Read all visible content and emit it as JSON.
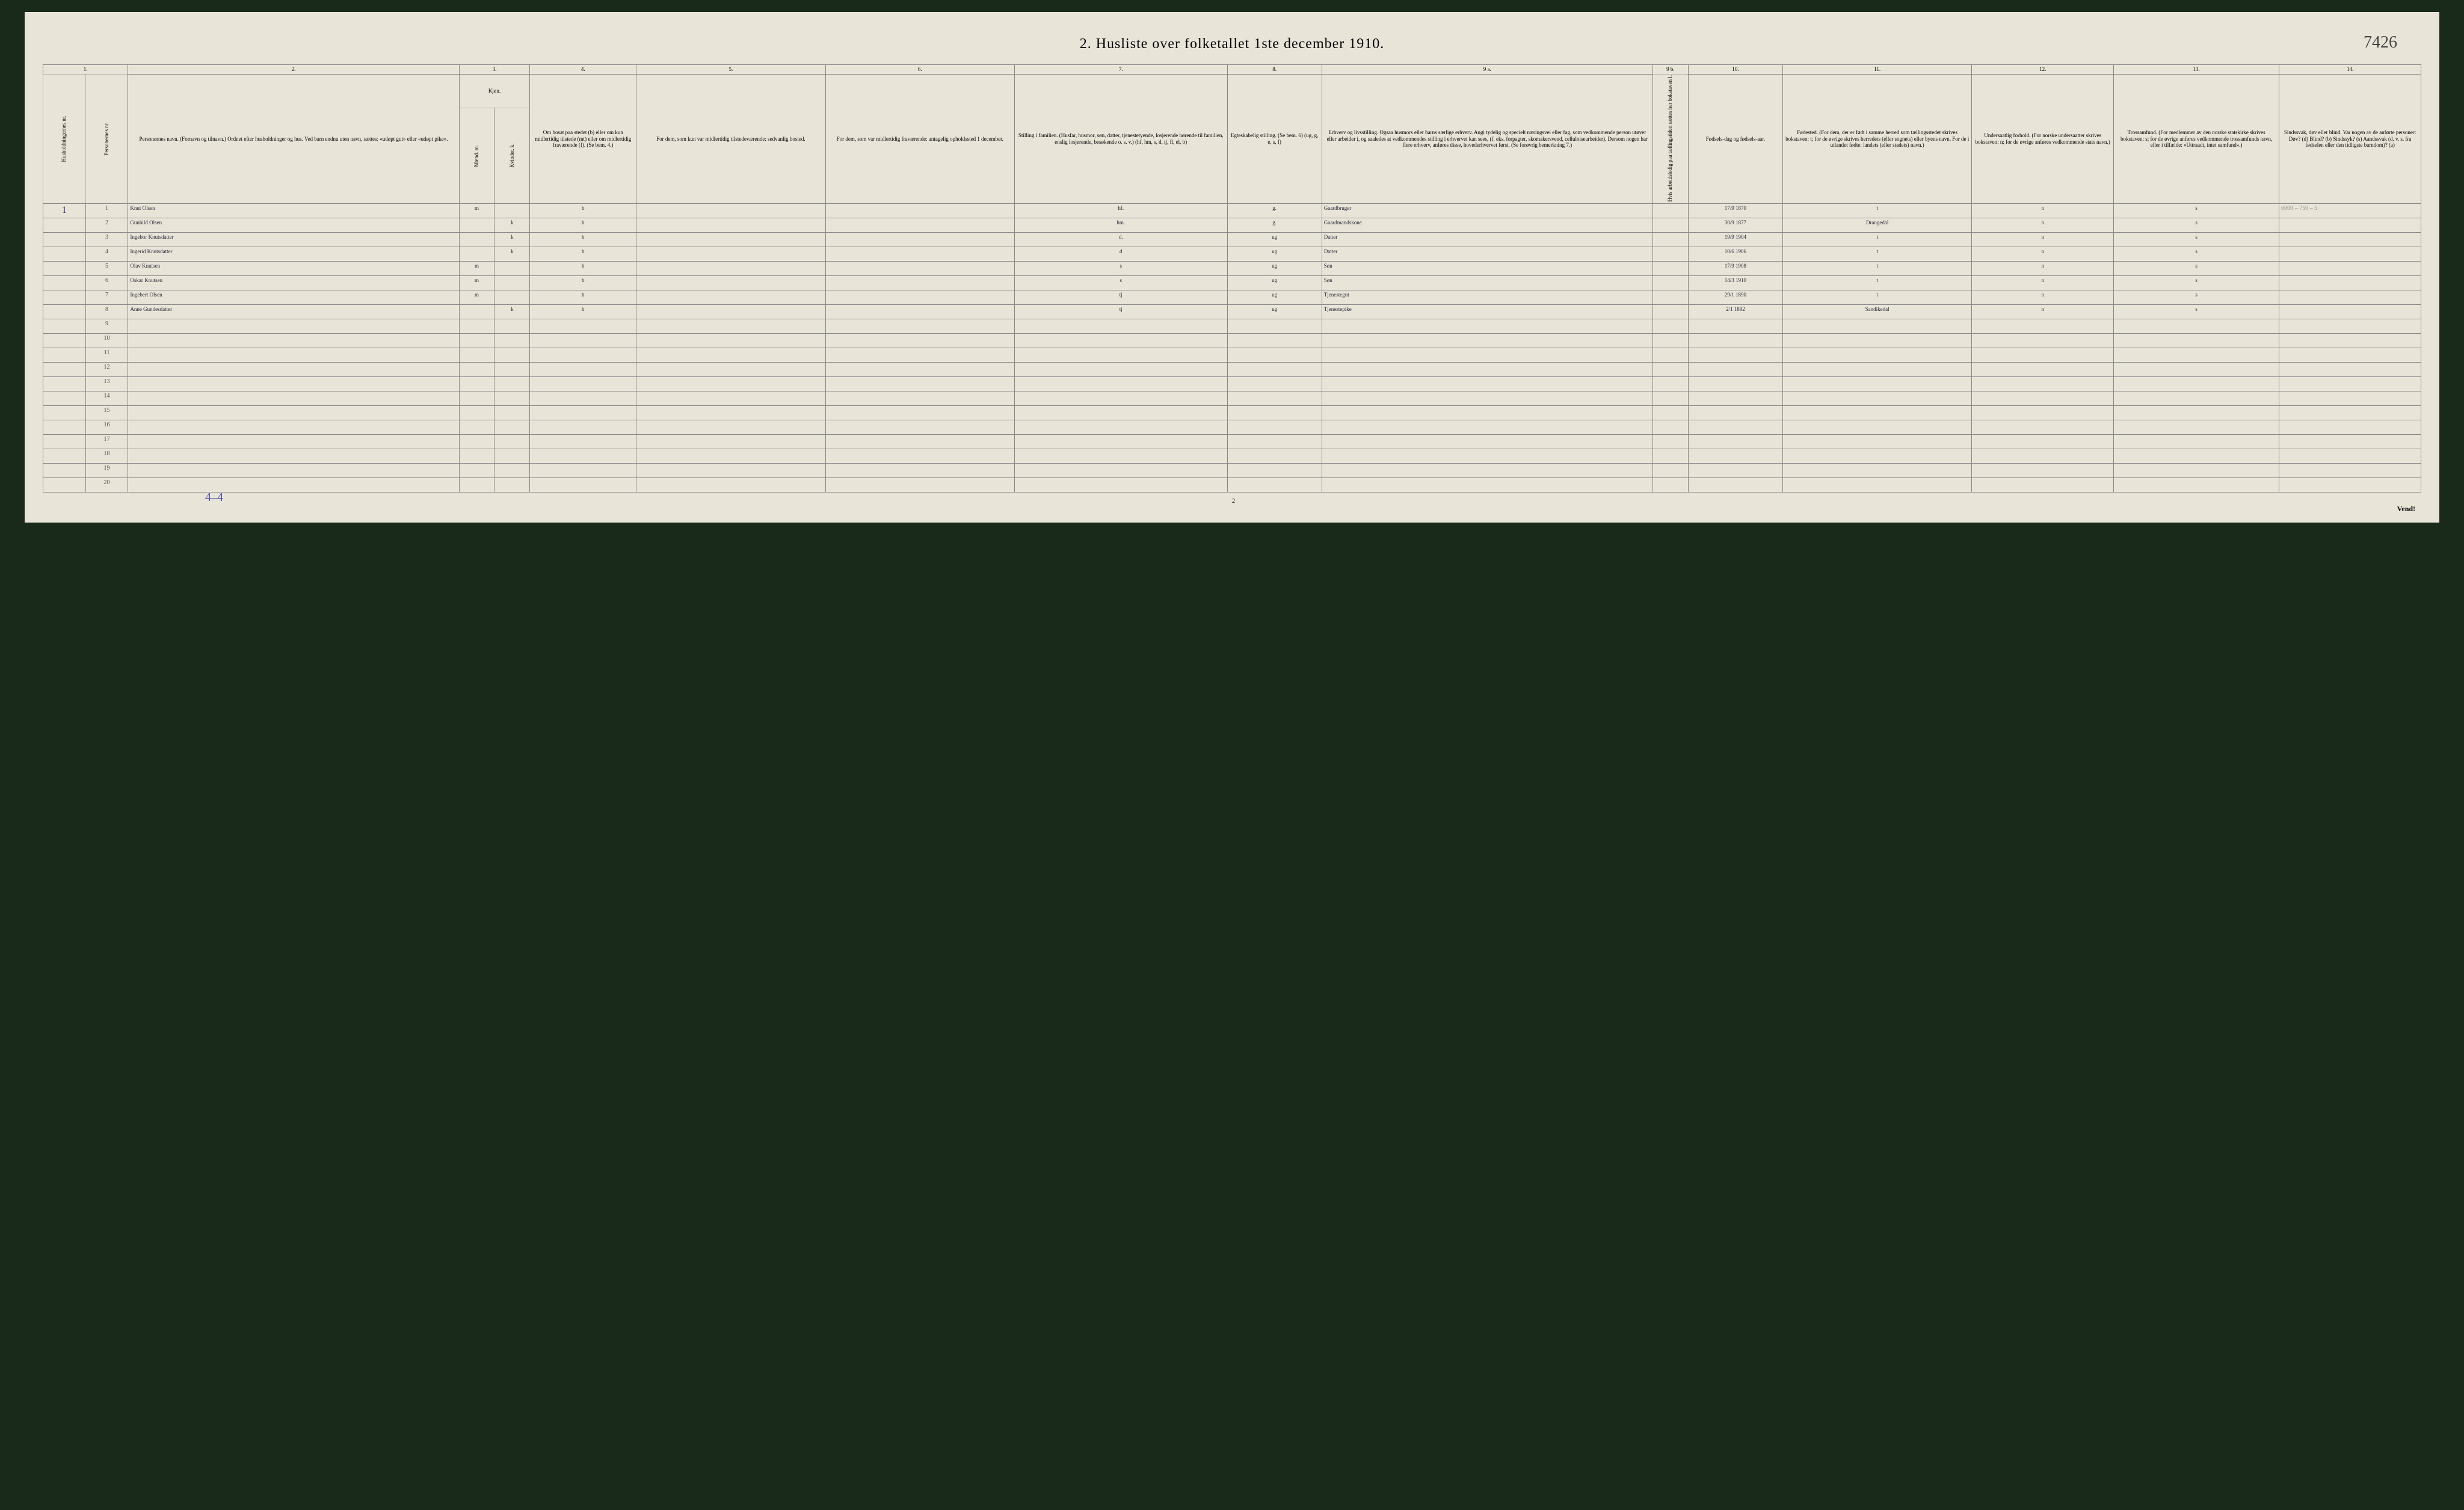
{
  "title": "2.  Husliste over folketallet 1ste december 1910.",
  "handwritten_topright": "7426",
  "footer_left": "4–4",
  "footer_page": "2",
  "footer_right": "Vend!",
  "margin_note_topright": "6000 – 750 – 5",
  "colors": {
    "page_bg": "#e8e4d8",
    "border": "#888888",
    "ink": "#2a2a3a",
    "blue_ink": "#4a4aaa"
  },
  "col_numbers": [
    "1.",
    "2.",
    "3.",
    "4.",
    "5.",
    "6.",
    "7.",
    "8.",
    "9 a.",
    "9 b.",
    "10.",
    "11.",
    "12.",
    "13.",
    "14."
  ],
  "headers": {
    "c1a": "Husholdningernes nr.",
    "c1b": "Personernes nr.",
    "c2": "Personernes navn.\n(Fornavn og tilnavn.)\nOrdnet efter husholdninger og hus.\nVed barn endnu uten navn, sættes: «udøpt gut» eller «udøpt pike».",
    "c3": "Kjøn.",
    "c3a": "Mænd.  m.",
    "c3b": "Kvinder.  k.",
    "c4": "Om bosat paa stedet (b) eller om kun midlertidig tilstede (mt) eller om midlertidig fraværende (f). (Se bem. 4.)",
    "c5": "For dem, som kun var midlertidig tilstedeværende:\nsedvanlig bosted.",
    "c6": "For dem, som var midlertidig fraværende:\nantagelig opholdssted 1 december.",
    "c7": "Stilling i familien.\n(Husfar, husmor, søn, datter, tjenestetyende, losjerende hørende til familien, enslig losjerende, besøkende o. s. v.)\n(hf, hm, s, d, tj, fl, el, b)",
    "c8": "Egteskabelig stilling. (Se bem. 6)\n(ug, g, e, s, f)",
    "c9": "Erhverv og livsstilling.\nOgsaa husmors eller barns særlige erhverv. Angi tydelig og specielt næringsvei eller fag, som vedkommende person utøver eller arbeider i, og saaledes at vedkommendes stilling i erhvervet kan sees, (f. eks. forpagter, skomakersvend, celluloisearbeider). Dersom nogen har flere erhverv, anføres disse, hovederhvervet først.\n(Se forøvrig bemerkning 7.)",
    "c9b": "Hvis arbeidsledig paa tællingstiden sættes her bokstaven l.",
    "c10": "Fødsels-dag og fødsels-aar.",
    "c11": "Fødested.\n(For dem, der er født i samme herred som tællingsstedet skrives bokstaven: t; for de øvrige skrives herredets (eller sognets) eller byens navn. For de i utlandet fødte: landets (eller stadets) navn.)",
    "c12": "Undersaatlig forhold.\n(For norske undersaatter skrives bokstaven: n; for de øvrige anføres vedkommende stats navn.)",
    "c13": "Trossamfund.\n(For medlemmer av den norske statskirke skrives bokstaven: s; for de øvrige anføres vedkommende trossamfunds navn, eller i tilfælde: «Uttraadt, intet samfund».)",
    "c14": "Sindssvak, døv eller blind.\nVar nogen av de anførte personer:\nDøv? (d)\nBlind? (b)\nSindssyk? (s)\nAandssvak (d. v. s. fra fødselen eller den tidligste barndom)? (a)"
  },
  "rows": [
    {
      "hh": "1",
      "nr": "1",
      "navn": "Knut Olsen",
      "m": "m",
      "k": "",
      "bosat": "b",
      "c5": "",
      "c6": "",
      "stilling": "hf.",
      "egte": "g.",
      "erhverv": "Gaardbruger",
      "c9b": "",
      "fodt": "17/9 1870",
      "fodested": "t",
      "under": "n",
      "tros": "s",
      "c14": ""
    },
    {
      "hh": "",
      "nr": "2",
      "navn": "Gunhild Olsen",
      "m": "",
      "k": "k",
      "bosat": "b",
      "c5": "",
      "c6": "",
      "stilling": "hm.",
      "egte": "g.",
      "erhverv": "Gaardmandskone",
      "c9b": "",
      "fodt": "30/9 1877",
      "fodested": "Drangedal",
      "under": "n",
      "tros": "s",
      "c14": ""
    },
    {
      "hh": "",
      "nr": "3",
      "navn": "Ingebor Knutsdatter",
      "m": "",
      "k": "k",
      "bosat": "b",
      "c5": "",
      "c6": "",
      "stilling": "d.",
      "egte": "ug",
      "erhverv": "Datter",
      "c9b": "",
      "fodt": "19/9 1904",
      "fodested": "t",
      "under": "n",
      "tros": "s",
      "c14": ""
    },
    {
      "hh": "",
      "nr": "4",
      "navn": "Ingerid Knutsdatter",
      "m": "",
      "k": "k",
      "bosat": "b",
      "c5": "",
      "c6": "",
      "stilling": "d",
      "egte": "ug",
      "erhverv": "Datter",
      "c9b": "",
      "fodt": "10/6 1906",
      "fodested": "t",
      "under": "n",
      "tros": "s",
      "c14": ""
    },
    {
      "hh": "",
      "nr": "5",
      "navn": "Olav Knutsen",
      "m": "m",
      "k": "",
      "bosat": "b",
      "c5": "",
      "c6": "",
      "stilling": "s",
      "egte": "ug",
      "erhverv": "Søn",
      "c9b": "",
      "fodt": "17/9 1908",
      "fodested": "t",
      "under": "n",
      "tros": "s",
      "c14": ""
    },
    {
      "hh": "",
      "nr": "6",
      "navn": "Oskar Knutsen",
      "m": "m",
      "k": "",
      "bosat": "b",
      "c5": "",
      "c6": "",
      "stilling": "s",
      "egte": "ug",
      "erhverv": "Søn",
      "c9b": "",
      "fodt": "14/3 1910",
      "fodested": "t",
      "under": "n",
      "tros": "s",
      "c14": ""
    },
    {
      "hh": "",
      "nr": "7",
      "navn": "Ingebert Olsen",
      "m": "m",
      "k": "",
      "bosat": "b",
      "c5": "",
      "c6": "",
      "stilling": "tj",
      "egte": "ug",
      "erhverv": "Tjenestegut",
      "c9b": "",
      "fodt": "29/1 1890",
      "fodested": "t",
      "under": "n",
      "tros": "s",
      "c14": ""
    },
    {
      "hh": "",
      "nr": "8",
      "navn": "Anne Gundesdatter",
      "m": "",
      "k": "k",
      "bosat": "b",
      "c5": "",
      "c6": "",
      "stilling": "tj",
      "egte": "ug",
      "erhverv": "Tjenestepike",
      "c9b": "",
      "fodt": "2/1 1892",
      "fodested": "Sandikedal",
      "under": "n",
      "tros": "s",
      "c14": ""
    }
  ],
  "empty_rows": [
    "9",
    "10",
    "11",
    "12",
    "13",
    "14",
    "15",
    "16",
    "17",
    "18",
    "19",
    "20"
  ]
}
